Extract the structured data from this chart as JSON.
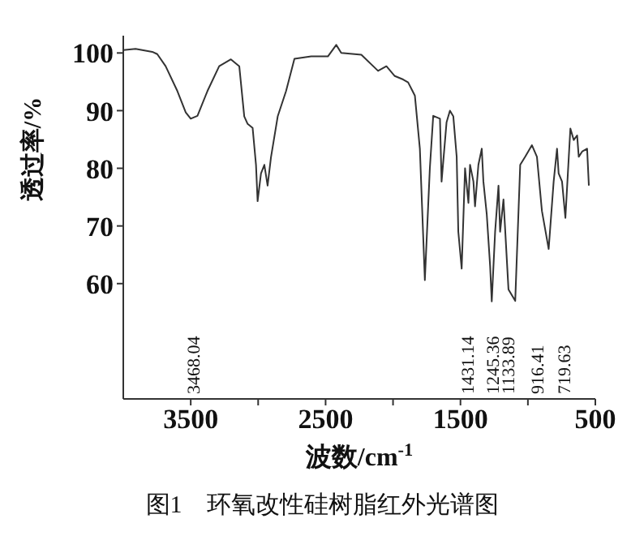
{
  "chart_data": {
    "type": "line",
    "title": "图1　环氧改性硅树脂红外光谱图",
    "xlabel": "波数/cm$^{-1}$",
    "ylabel": "透过率/%",
    "x": [
      4000,
      3909,
      3785,
      3748,
      3686,
      3599,
      3537,
      3500,
      3450,
      3376,
      3289,
      3202,
      3140,
      3103,
      3078,
      3041,
      3016,
      3004,
      2979,
      2954,
      2930,
      2905,
      2855,
      2793,
      2731,
      2607,
      2483,
      2421,
      2384,
      2235,
      2111,
      2049,
      1987,
      1925,
      1888,
      1838,
      1801,
      1764,
      1727,
      1702,
      1652,
      1640,
      1603,
      1578,
      1553,
      1528,
      1516,
      1491,
      1466,
      1441,
      1429,
      1404,
      1392,
      1367,
      1342,
      1330,
      1305,
      1280,
      1268,
      1243,
      1218,
      1206,
      1181,
      1144,
      1094,
      1057,
      1020,
      970,
      933,
      896,
      846,
      809,
      784,
      772,
      747,
      722,
      697,
      685,
      660,
      635,
      623,
      598,
      561,
      548
    ],
    "series": [
      {
        "color": "#333333",
        "values": [
          100.5,
          100.7,
          100.2,
          99.8,
          97.7,
          93.4,
          89.7,
          88.6,
          89.1,
          93.4,
          97.7,
          98.9,
          97.7,
          89,
          87.7,
          87,
          80.6,
          74.3,
          79.1,
          80.6,
          77,
          81.9,
          89,
          93.4,
          99,
          99.4,
          99.4,
          101.4,
          100,
          99.7,
          96.9,
          97.7,
          96,
          95.4,
          94.9,
          92.6,
          83.4,
          60.6,
          80,
          89.1,
          88.6,
          77.7,
          88,
          90,
          89,
          82,
          69,
          62.6,
          80,
          74,
          80.6,
          77.7,
          73.4,
          80.6,
          83.4,
          77.7,
          72,
          63,
          56.9,
          69,
          77,
          69,
          74.6,
          59,
          57,
          80.6,
          82,
          84,
          82,
          72.6,
          66,
          77.7,
          83.4,
          79.1,
          77.7,
          71.4,
          81.9,
          86.9,
          84.9,
          85.7,
          82,
          82.9,
          83.4,
          77
        ]
      }
    ],
    "xlim": [
      4000,
      500
    ],
    "xticks": [
      3500,
      {
        "value": 3000,
        "label": null
      },
      2500,
      {
        "value": 2000,
        "label": null
      },
      1500,
      {
        "value": 1000,
        "label": null
      },
      500
    ],
    "ylim": [
      40,
      103
    ],
    "yticks": [
      60,
      70,
      80,
      90,
      100
    ],
    "marker": "none",
    "line_style": "solid",
    "grid": false,
    "annotations": [
      "3468.04",
      "1431.14",
      "1245.36",
      "1133.89",
      "916.41",
      "719.63"
    ]
  }
}
